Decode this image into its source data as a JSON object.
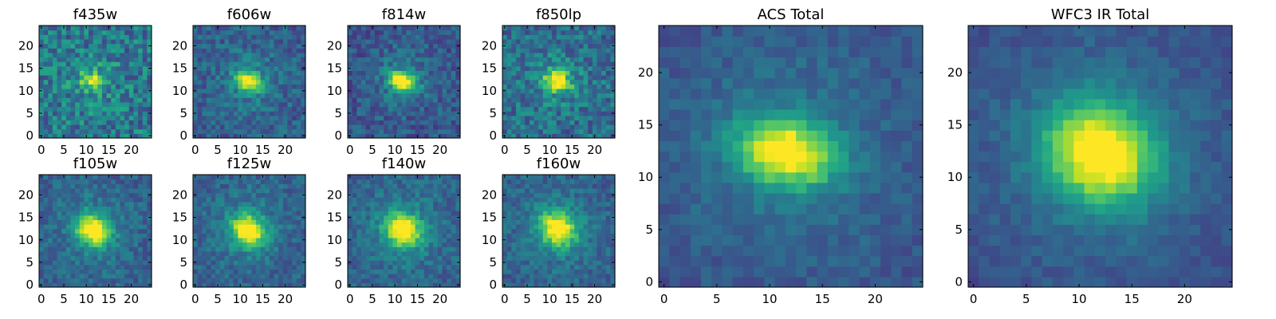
{
  "chart_data": {
    "type": "heatmap",
    "colormap": "viridis",
    "grid": false,
    "panels": [
      {
        "title": "f435w",
        "xlim": [
          0,
          24
        ],
        "ylim": [
          0,
          24
        ],
        "xticks": [
          0,
          5,
          10,
          15,
          20
        ],
        "yticks": [
          0,
          5,
          10,
          15,
          20
        ],
        "peak": [
          11.5,
          12.2
        ],
        "sigma": [
          1.6,
          1.1
        ],
        "background": 0.4,
        "noise": 0.2,
        "angle": -0.25
      },
      {
        "title": "f606w",
        "xlim": [
          0,
          24
        ],
        "ylim": [
          0,
          24
        ],
        "xticks": [
          0,
          5,
          10,
          15,
          20
        ],
        "yticks": [
          0,
          5,
          10,
          15,
          20
        ],
        "peak": [
          12.0,
          12.2
        ],
        "sigma": [
          2.0,
          1.3
        ],
        "background": 0.3,
        "noise": 0.13,
        "angle": -0.35
      },
      {
        "title": "f814w",
        "xlim": [
          0,
          24
        ],
        "ylim": [
          0,
          24
        ],
        "xticks": [
          0,
          5,
          10,
          15,
          20
        ],
        "yticks": [
          0,
          5,
          10,
          15,
          20
        ],
        "peak": [
          11.7,
          12.2
        ],
        "sigma": [
          2.0,
          1.4
        ],
        "background": 0.27,
        "noise": 0.13,
        "angle": -0.35
      },
      {
        "title": "f850lp",
        "xlim": [
          0,
          24
        ],
        "ylim": [
          0,
          24
        ],
        "xticks": [
          0,
          5,
          10,
          15,
          20
        ],
        "yticks": [
          0,
          5,
          10,
          15,
          20
        ],
        "peak": [
          11.7,
          12.2
        ],
        "sigma": [
          2.0,
          1.5
        ],
        "background": 0.35,
        "noise": 0.17,
        "angle": -0.35
      },
      {
        "title": "f105w",
        "xlim": [
          0,
          24
        ],
        "ylim": [
          0,
          24
        ],
        "xticks": [
          0,
          5,
          10,
          15,
          20
        ],
        "yticks": [
          0,
          5,
          10,
          15,
          20
        ],
        "peak": [
          11.5,
          12.3
        ],
        "sigma": [
          2.6,
          2.2
        ],
        "background": 0.3,
        "noise": 0.11,
        "angle": -0.6
      },
      {
        "title": "f125w",
        "xlim": [
          0,
          24
        ],
        "ylim": [
          0,
          24
        ],
        "xticks": [
          0,
          5,
          10,
          15,
          20
        ],
        "yticks": [
          0,
          5,
          10,
          15,
          20
        ],
        "peak": [
          11.8,
          12.2
        ],
        "sigma": [
          2.6,
          2.2
        ],
        "background": 0.3,
        "noise": 0.11,
        "angle": -0.6
      },
      {
        "title": "f140w",
        "xlim": [
          0,
          24
        ],
        "ylim": [
          0,
          24
        ],
        "xticks": [
          0,
          5,
          10,
          15,
          20
        ],
        "yticks": [
          0,
          5,
          10,
          15,
          20
        ],
        "peak": [
          11.8,
          12.3
        ],
        "sigma": [
          2.8,
          2.4
        ],
        "background": 0.3,
        "noise": 0.11,
        "angle": -0.6
      },
      {
        "title": "f160w",
        "xlim": [
          0,
          24
        ],
        "ylim": [
          0,
          24
        ],
        "xticks": [
          0,
          5,
          10,
          15,
          20
        ],
        "yticks": [
          0,
          5,
          10,
          15,
          20
        ],
        "peak": [
          11.8,
          12.5
        ],
        "sigma": [
          2.8,
          2.4
        ],
        "background": 0.3,
        "noise": 0.11,
        "angle": -0.6
      },
      {
        "title": "ACS Total",
        "xlim": [
          0,
          24
        ],
        "ylim": [
          0,
          24
        ],
        "xticks": [
          0,
          5,
          10,
          15,
          20
        ],
        "yticks": [
          0,
          5,
          10,
          15,
          20
        ],
        "peak": [
          11.5,
          12.4
        ],
        "sigma": [
          3.1,
          2.0
        ],
        "background": 0.25,
        "noise": 0.07,
        "angle": -0.25
      },
      {
        "title": "WFC3 IR Total",
        "xlim": [
          0,
          24
        ],
        "ylim": [
          0,
          24
        ],
        "xticks": [
          0,
          5,
          10,
          15,
          20
        ],
        "yticks": [
          0,
          5,
          10,
          15,
          20
        ],
        "peak": [
          12.0,
          12.3
        ],
        "sigma": [
          3.6,
          3.1
        ],
        "background": 0.22,
        "noise": 0.06,
        "angle": -0.5
      }
    ]
  }
}
